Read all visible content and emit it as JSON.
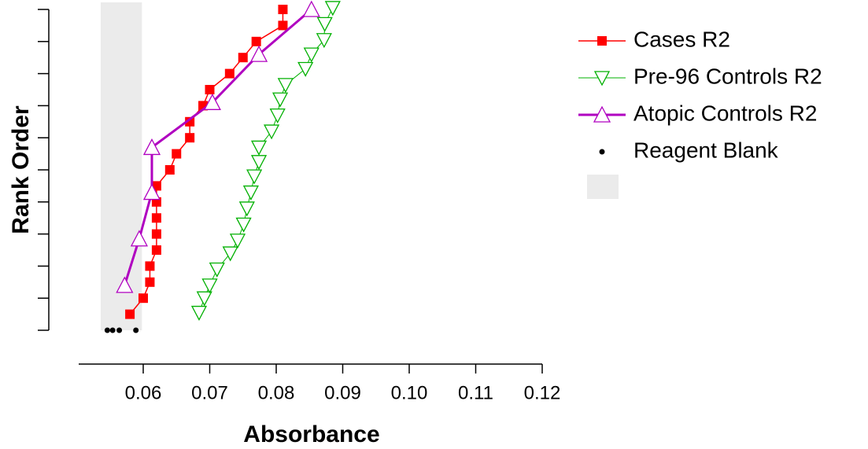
{
  "chart_data": {
    "type": "line",
    "x_label": "Absorbance",
    "y_label": "Rank Order",
    "xlim": [
      0.05,
      0.12
    ],
    "xticks": [
      0.06,
      0.07,
      0.08,
      0.09,
      {
        "value": 0.1,
        "label": "0.10"
      },
      0.11,
      0.12
    ],
    "ylim": [
      0,
      20
    ],
    "yticks": [
      0,
      2,
      4,
      6,
      8,
      10,
      12,
      14,
      16,
      18,
      20
    ],
    "shaded_band": {
      "xrange": [
        0.0536,
        0.0598
      ],
      "color": "#ebebeb"
    },
    "series": [
      {
        "name": "Cases R2",
        "color": "#ff0000",
        "marker": "square",
        "line_width": 1.5,
        "x": [
          0.058,
          0.06,
          0.061,
          0.061,
          0.062,
          0.062,
          0.062,
          0.062,
          0.062,
          0.064,
          0.065,
          0.067,
          0.067,
          0.069,
          0.07,
          0.073,
          0.075,
          0.077,
          0.081,
          0.081
        ],
        "values": [
          1,
          2,
          3,
          4,
          5,
          6,
          7,
          8,
          9,
          10,
          11,
          12,
          13,
          14,
          15,
          16,
          17,
          18,
          19,
          20
        ]
      },
      {
        "name": "Pre-96 Controls R2",
        "color": "#00b000",
        "marker": "triangle-down",
        "line_width": 1,
        "x": [
          0.0684,
          0.0692,
          0.07,
          0.0711,
          0.0731,
          0.0742,
          0.0751,
          0.0756,
          0.0762,
          0.0767,
          0.0774,
          0.0774,
          0.0793,
          0.0802,
          0.0806,
          0.0814,
          0.0844,
          0.0853,
          0.0872,
          0.0873,
          0.0885
        ],
        "values": [
          1.1,
          2,
          2.8,
          3.8,
          4.8,
          5.6,
          6.6,
          7.6,
          8.6,
          9.6,
          10.5,
          11.4,
          12.4,
          13.4,
          14.4,
          15.3,
          16.3,
          17.2,
          18.1,
          19.1,
          20.1
        ]
      },
      {
        "name": "Atopic Controls R2",
        "color": "#b000c0",
        "marker": "triangle-up",
        "line_width": 3,
        "x": [
          0.0572,
          0.0594,
          0.0613,
          0.0613,
          0.0704,
          0.0774,
          0.0853
        ],
        "values": [
          2.8,
          5.7,
          8.6,
          11.4,
          14.2,
          17.2,
          20
        ]
      },
      {
        "name": "Reagent Blank",
        "color": "#000000",
        "marker": "dot",
        "line_width": 0,
        "x": [
          0.0546,
          0.0554,
          0.0564,
          0.0589
        ],
        "values": [
          0,
          0,
          0,
          0
        ]
      }
    ]
  }
}
